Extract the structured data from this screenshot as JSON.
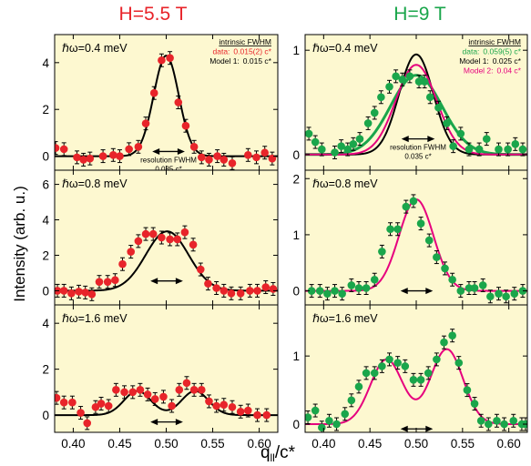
{
  "chart_data": {
    "type": "scatter",
    "ylabel": "Intensity (arb. u.)",
    "xlabel": "q",
    "xlabel_sub": "ll",
    "xlabel_suffix": "/c*",
    "xlim": [
      0.38,
      0.62
    ],
    "x_ticks": [
      "0.40",
      "0.45",
      "0.50",
      "0.55",
      "0.60"
    ],
    "colors": {
      "panel_bg": "#fdf8d0",
      "red": "#e8242a",
      "green": "#1aa64b",
      "magenta": "#e6007e",
      "title_red": "#e8242a",
      "title_green": "#1aa64b"
    },
    "columns": [
      {
        "title": "H=5.5 T",
        "color": "red"
      },
      {
        "title": "H=9 T",
        "color": "green"
      }
    ],
    "panels": [
      {
        "id": "h55-e04",
        "col": 0,
        "row": 0,
        "energy": "ℏω=0.4 meV",
        "ylim": [
          -0.6,
          5.2
        ],
        "y_ticks": [
          0,
          2,
          4
        ],
        "point_color": "red",
        "points": [
          [
            0.381,
            0.35
          ],
          [
            0.39,
            0.3
          ],
          [
            0.404,
            -0.05
          ],
          [
            0.411,
            -0.15
          ],
          [
            0.418,
            -0.1
          ],
          [
            0.432,
            0.0
          ],
          [
            0.443,
            0.05
          ],
          [
            0.45,
            0.0
          ],
          [
            0.46,
            0.3
          ],
          [
            0.47,
            0.4
          ],
          [
            0.478,
            1.4
          ],
          [
            0.487,
            2.7
          ],
          [
            0.495,
            4.1
          ],
          [
            0.504,
            4.2
          ],
          [
            0.513,
            2.3
          ],
          [
            0.521,
            1.3
          ],
          [
            0.53,
            0.4
          ],
          [
            0.538,
            -0.05
          ],
          [
            0.546,
            -0.15
          ],
          [
            0.555,
            0.0
          ],
          [
            0.562,
            -0.15
          ],
          [
            0.571,
            -0.3
          ],
          [
            0.588,
            0.05
          ],
          [
            0.597,
            -0.05
          ],
          [
            0.606,
            0.15
          ],
          [
            0.614,
            -0.1
          ]
        ],
        "fits": [
          {
            "color": "#000000",
            "center": 0.5,
            "amp": 4.3,
            "sigma": 0.0135
          }
        ],
        "arrow_x": [
          0.485,
          0.52
        ],
        "arrow_y": 0.2,
        "arrow_label": [
          "resolution FWHM",
          "0.035 c*"
        ],
        "legend": [
          {
            "label": "intrinsic FWHM",
            "value": "",
            "color": "#000000",
            "underline": true
          },
          {
            "label": "data:",
            "value": "0.015(2) c*",
            "color": "#e8242a"
          },
          {
            "label": "Model 1:",
            "value": "0.015 c*",
            "color": "#000000"
          }
        ]
      },
      {
        "id": "h9-e04",
        "col": 1,
        "row": 0,
        "energy": "ℏω=0.4 meV",
        "ylim": [
          -0.15,
          1.15
        ],
        "y_ticks": [
          0,
          1
        ],
        "point_color": "green",
        "points": [
          [
            0.384,
            0.2
          ],
          [
            0.391,
            0.12
          ],
          [
            0.398,
            0.05
          ],
          [
            0.412,
            0.02
          ],
          [
            0.419,
            0.08
          ],
          [
            0.426,
            0.05
          ],
          [
            0.432,
            0.1
          ],
          [
            0.439,
            0.15
          ],
          [
            0.448,
            0.3
          ],
          [
            0.455,
            0.4
          ],
          [
            0.462,
            0.55
          ],
          [
            0.471,
            0.65
          ],
          [
            0.478,
            0.75
          ],
          [
            0.485,
            0.72
          ],
          [
            0.493,
            0.75
          ],
          [
            0.503,
            0.7
          ],
          [
            0.509,
            0.7
          ],
          [
            0.515,
            0.55
          ],
          [
            0.524,
            0.45
          ],
          [
            0.533,
            0.3
          ],
          [
            0.54,
            0.08
          ],
          [
            0.548,
            0.2
          ],
          [
            0.557,
            0.05
          ],
          [
            0.568,
            0.05
          ],
          [
            0.576,
            0.15
          ],
          [
            0.589,
            0.05
          ],
          [
            0.599,
            0.05
          ],
          [
            0.607,
            0.1
          ],
          [
            0.615,
            0.05
          ]
        ],
        "fits": [
          {
            "color": "#1aa64b",
            "center": 0.5,
            "amp": 0.76,
            "sigma": 0.028,
            "width": 3
          },
          {
            "color": "#000000",
            "center": 0.5,
            "amp": 0.96,
            "sigma": 0.0185
          },
          {
            "color": "#e6007e",
            "center": 0.5,
            "amp": 0.86,
            "sigma": 0.022
          }
        ],
        "arrow_x": [
          0.484,
          0.52
        ],
        "arrow_y": 0.15,
        "arrow_label": [
          "resolution FWHM",
          "0.035 c*"
        ],
        "legend": [
          {
            "label": "intrinsic FWHM",
            "value": "",
            "color": "#000000",
            "underline": true
          },
          {
            "label": "data:",
            "value": "0.059(5) c*",
            "color": "#1aa64b"
          },
          {
            "label": "Model 1:",
            "value": "0.025 c*",
            "color": "#000000"
          },
          {
            "label": "Model 2:",
            "value": "0.04 c*",
            "color": "#e6007e"
          }
        ]
      },
      {
        "id": "h55-e08",
        "col": 0,
        "row": 1,
        "energy": "ℏω=0.8 meV",
        "ylim": [
          -0.8,
          6.8
        ],
        "y_ticks": [
          0,
          2,
          4,
          6
        ],
        "point_color": "red",
        "points": [
          [
            0.383,
            0.0
          ],
          [
            0.39,
            0.0
          ],
          [
            0.398,
            -0.15
          ],
          [
            0.406,
            -0.05
          ],
          [
            0.413,
            -0.1
          ],
          [
            0.42,
            -0.2
          ],
          [
            0.428,
            0.5
          ],
          [
            0.437,
            0.5
          ],
          [
            0.445,
            0.6
          ],
          [
            0.453,
            1.5
          ],
          [
            0.462,
            2.2
          ],
          [
            0.47,
            2.8
          ],
          [
            0.478,
            3.2
          ],
          [
            0.486,
            3.2
          ],
          [
            0.495,
            3.0
          ],
          [
            0.504,
            2.9
          ],
          [
            0.512,
            2.9
          ],
          [
            0.52,
            3.3
          ],
          [
            0.529,
            2.6
          ],
          [
            0.537,
            1.2
          ],
          [
            0.545,
            0.4
          ],
          [
            0.554,
            0.15
          ],
          [
            0.562,
            0.0
          ],
          [
            0.57,
            -0.15
          ],
          [
            0.58,
            -0.15
          ],
          [
            0.59,
            0.0
          ],
          [
            0.598,
            0.0
          ],
          [
            0.607,
            0.2
          ],
          [
            0.615,
            0.1
          ]
        ],
        "fits": [
          {
            "color": "#000000",
            "center": 0.501,
            "amp": 3.35,
            "sigma": 0.023
          }
        ],
        "arrow_x": [
          0.483,
          0.518
        ],
        "arrow_y": 0.55,
        "arrow_label": [],
        "legend": []
      },
      {
        "id": "h9-e08",
        "col": 1,
        "row": 1,
        "energy": "ℏω=0.8 meV",
        "ylim": [
          -0.25,
          2.15
        ],
        "y_ticks": [
          0,
          1,
          2
        ],
        "point_color": "green",
        "points": [
          [
            0.387,
            0.0
          ],
          [
            0.396,
            0.0
          ],
          [
            0.404,
            -0.05
          ],
          [
            0.412,
            0.0
          ],
          [
            0.42,
            -0.05
          ],
          [
            0.43,
            0.1
          ],
          [
            0.438,
            0.05
          ],
          [
            0.446,
            0.05
          ],
          [
            0.455,
            0.2
          ],
          [
            0.463,
            0.7
          ],
          [
            0.472,
            1.1
          ],
          [
            0.48,
            1.1
          ],
          [
            0.489,
            1.5
          ],
          [
            0.497,
            1.6
          ],
          [
            0.505,
            1.2
          ],
          [
            0.514,
            0.9
          ],
          [
            0.522,
            0.6
          ],
          [
            0.531,
            0.4
          ],
          [
            0.539,
            0.2
          ],
          [
            0.548,
            0.0
          ],
          [
            0.557,
            0.05
          ],
          [
            0.563,
            0.05
          ],
          [
            0.572,
            0.1
          ],
          [
            0.58,
            -0.1
          ],
          [
            0.589,
            -0.05
          ],
          [
            0.597,
            -0.1
          ],
          [
            0.606,
            -0.05
          ],
          [
            0.615,
            0.0
          ]
        ],
        "fits": [
          {
            "color": "#e6007e",
            "center": 0.5,
            "amp": 1.63,
            "sigma": 0.0185
          }
        ],
        "arrow_x": [
          0.483,
          0.518
        ],
        "arrow_y": 0.0,
        "arrow_label": [],
        "legend": []
      },
      {
        "id": "h55-e16",
        "col": 0,
        "row": 2,
        "energy": "ℏω=1.6 meV",
        "ylim": [
          -0.75,
          4.8
        ],
        "y_ticks": [
          0,
          2,
          4
        ],
        "point_color": "red",
        "points": [
          [
            0.382,
            0.75
          ],
          [
            0.39,
            0.55
          ],
          [
            0.399,
            0.55
          ],
          [
            0.408,
            0.1
          ],
          [
            0.415,
            -0.35
          ],
          [
            0.424,
            0.35
          ],
          [
            0.43,
            0.5
          ],
          [
            0.438,
            0.4
          ],
          [
            0.446,
            1.1
          ],
          [
            0.455,
            1.0
          ],
          [
            0.464,
            1.0
          ],
          [
            0.472,
            1.1
          ],
          [
            0.48,
            0.9
          ],
          [
            0.488,
            0.7
          ],
          [
            0.497,
            0.8
          ],
          [
            0.506,
            0.4
          ],
          [
            0.514,
            1.1
          ],
          [
            0.522,
            1.4
          ],
          [
            0.53,
            1.1
          ],
          [
            0.538,
            1.1
          ],
          [
            0.546,
            0.6
          ],
          [
            0.554,
            0.4
          ],
          [
            0.562,
            0.45
          ],
          [
            0.571,
            0.35
          ],
          [
            0.58,
            0.15
          ],
          [
            0.588,
            0.2
          ],
          [
            0.598,
            0.0
          ],
          [
            0.608,
            0.0
          ]
        ],
        "fits": [
          {
            "color": "#000000",
            "kind": "double",
            "c1": 0.469,
            "c2": 0.531,
            "amp": 1.05,
            "sigma": 0.0145
          }
        ],
        "arrow_x": [
          0.483,
          0.518
        ],
        "arrow_y": -0.3,
        "arrow_label": [],
        "legend": []
      },
      {
        "id": "h9-e16",
        "col": 1,
        "row": 2,
        "energy": "ℏω=1.6 meV",
        "ylim": [
          -0.12,
          1.75
        ],
        "y_ticks": [
          0,
          1
        ],
        "point_color": "green",
        "points": [
          [
            0.383,
            0.1
          ],
          [
            0.391,
            0.2
          ],
          [
            0.398,
            -0.05
          ],
          [
            0.406,
            0.05
          ],
          [
            0.414,
            0.0
          ],
          [
            0.423,
            0.15
          ],
          [
            0.43,
            0.35
          ],
          [
            0.438,
            0.55
          ],
          [
            0.446,
            0.75
          ],
          [
            0.455,
            0.75
          ],
          [
            0.463,
            0.85
          ],
          [
            0.471,
            0.95
          ],
          [
            0.48,
            0.9
          ],
          [
            0.488,
            0.85
          ],
          [
            0.497,
            0.65
          ],
          [
            0.505,
            0.65
          ],
          [
            0.513,
            0.75
          ],
          [
            0.522,
            0.95
          ],
          [
            0.53,
            1.2
          ],
          [
            0.539,
            1.3
          ],
          [
            0.546,
            0.9
          ],
          [
            0.555,
            0.5
          ],
          [
            0.563,
            0.3
          ],
          [
            0.57,
            0.05
          ],
          [
            0.578,
            0.0
          ],
          [
            0.587,
            0.05
          ],
          [
            0.595,
            0.0
          ],
          [
            0.605,
            0.05
          ],
          [
            0.614,
            0.0
          ],
          [
            0.618,
            0.0
          ]
        ],
        "fits": [
          {
            "color": "#e6007e",
            "kind": "double",
            "c1": 0.468,
            "c2": 0.533,
            "amp": 0.95,
            "sigma": 0.0175,
            "amp2": 1.1
          }
        ],
        "arrow_x": [
          0.483,
          0.518
        ],
        "arrow_y": -0.07,
        "arrow_label": [],
        "legend": []
      }
    ]
  }
}
